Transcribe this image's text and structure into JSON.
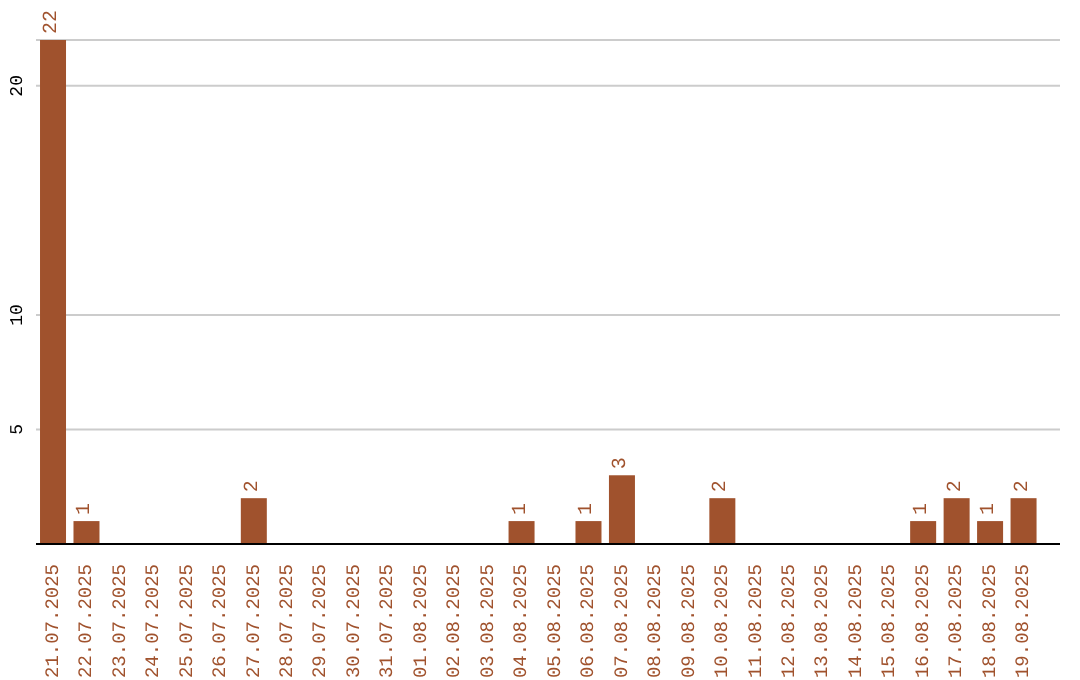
{
  "chart_data": {
    "type": "bar",
    "categories": [
      "21.07.2025",
      "22.07.2025",
      "23.07.2025",
      "24.07.2025",
      "25.07.2025",
      "26.07.2025",
      "27.07.2025",
      "28.07.2025",
      "29.07.2025",
      "30.07.2025",
      "31.07.2025",
      "01.08.2025",
      "02.08.2025",
      "03.08.2025",
      "04.08.2025",
      "05.08.2025",
      "06.08.2025",
      "07.08.2025",
      "08.08.2025",
      "09.08.2025",
      "10.08.2025",
      "11.08.2025",
      "12.08.2025",
      "13.08.2025",
      "14.08.2025",
      "15.08.2025",
      "16.08.2025",
      "17.08.2025",
      "18.08.2025",
      "19.08.2025"
    ],
    "values": [
      22,
      1,
      0,
      0,
      0,
      0,
      2,
      0,
      0,
      0,
      0,
      0,
      0,
      0,
      1,
      0,
      1,
      3,
      0,
      0,
      2,
      0,
      0,
      0,
      0,
      0,
      1,
      2,
      1,
      2
    ],
    "value_labels": [
      "22",
      "1",
      null,
      null,
      null,
      null,
      "2",
      null,
      null,
      null,
      null,
      null,
      null,
      null,
      "1",
      null,
      "1",
      "3",
      null,
      null,
      "2",
      null,
      null,
      null,
      null,
      null,
      "1",
      "2",
      "1",
      "2"
    ],
    "color": "#a0522d",
    "ylim": [
      0,
      22
    ],
    "yticks": [
      5,
      10,
      20
    ],
    "grid": "y"
  }
}
